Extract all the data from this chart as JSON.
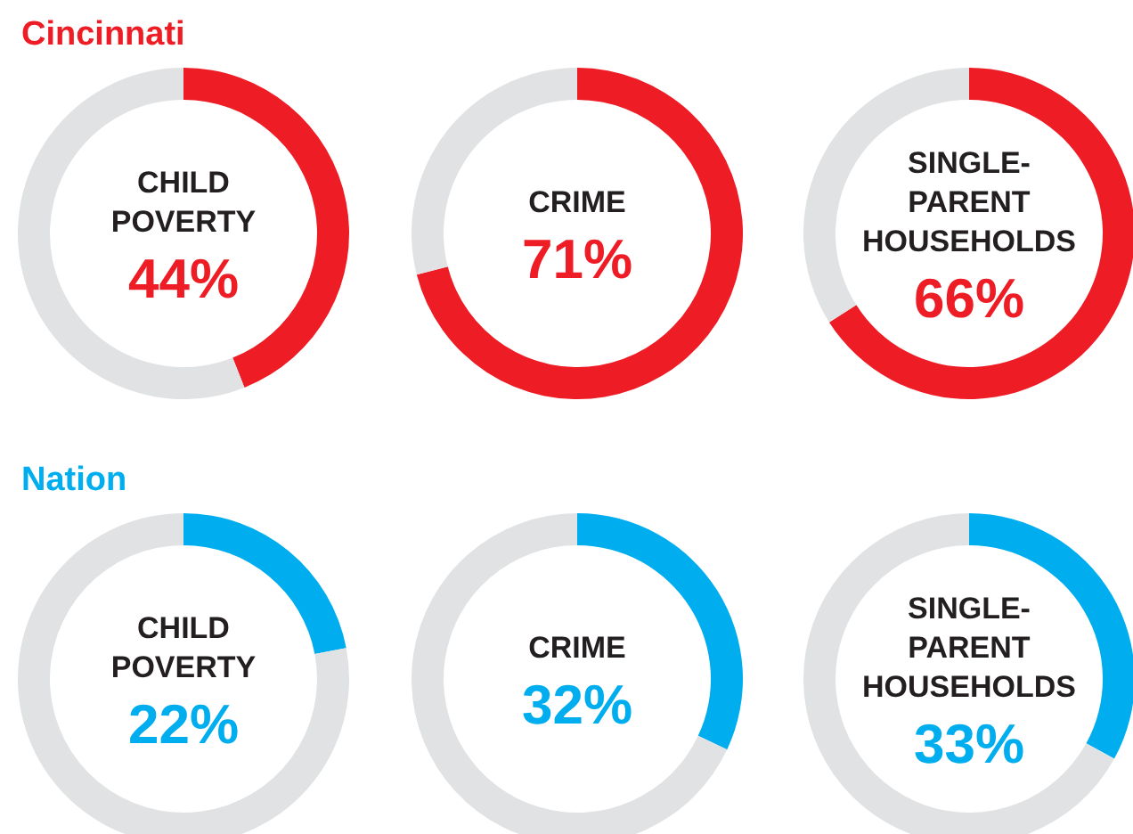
{
  "chart_data": [
    {
      "type": "other",
      "title": "Cincinnati",
      "color": "#ee1c25"
    },
    {
      "type": "donut",
      "title": "CHILD POVERTY",
      "categories": [
        null,
        null
      ],
      "values": [
        44,
        56
      ],
      "colors": [
        "#ee1c25",
        "#e1e2e4"
      ],
      "annotations": [
        "44%"
      ]
    },
    {
      "type": "donut",
      "title": "CRIME",
      "categories": [
        null,
        null
      ],
      "values": [
        71,
        29
      ],
      "colors": [
        "#ee1c25",
        "#e1e2e4"
      ],
      "annotations": [
        "71%"
      ]
    },
    {
      "type": "donut",
      "title": "SINGLE-PARENT HOUSEHOLDS",
      "categories": [
        null,
        null
      ],
      "values": [
        66,
        34
      ],
      "colors": [
        "#ee1c25",
        "#e1e2e4"
      ],
      "annotations": [
        "66%"
      ]
    },
    {
      "type": "other",
      "title": "Nation",
      "color": "#00aeef"
    },
    {
      "type": "donut",
      "title": "CHILD POVERTY",
      "categories": [
        null,
        null
      ],
      "values": [
        22,
        78
      ],
      "colors": [
        "#00aeef",
        "#e1e2e4"
      ],
      "annotations": [
        "22%"
      ]
    },
    {
      "type": "donut",
      "title": "CRIME",
      "categories": [
        null,
        null
      ],
      "values": [
        32,
        68
      ],
      "colors": [
        "#00aeef",
        "#e1e2e4"
      ],
      "annotations": [
        "32%"
      ]
    },
    {
      "type": "donut",
      "title": "SINGLE-PARENT HOUSEHOLDS",
      "categories": [
        null,
        null
      ],
      "values": [
        33,
        67
      ],
      "colors": [
        "#00aeef",
        "#e1e2e4"
      ],
      "annotations": [
        "33%"
      ]
    }
  ]
}
